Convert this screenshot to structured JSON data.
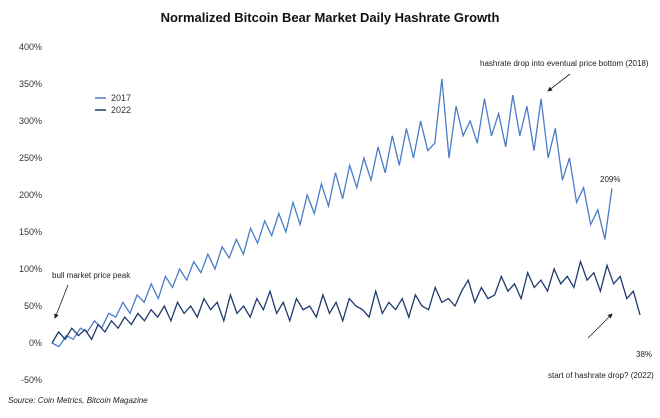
{
  "chart_data": {
    "type": "line",
    "title": "Normalized  Bitcoin Bear Market Daily Hashrate Growth",
    "xlabel": "",
    "ylabel": "",
    "ylim": [
      -50,
      400
    ],
    "yticks": [
      "400%",
      "350%",
      "300%",
      "250%",
      "200%",
      "150%",
      "100%",
      "50%",
      "0%",
      "-50%"
    ],
    "ytick_values": [
      400,
      350,
      300,
      250,
      200,
      150,
      100,
      50,
      0,
      -50
    ],
    "grid": false,
    "legend_position": "upper-left",
    "series": [
      {
        "name": "2017",
        "color": "#4a7cc7",
        "values": [
          0,
          -5,
          10,
          5,
          20,
          15,
          30,
          20,
          40,
          35,
          55,
          40,
          65,
          55,
          80,
          60,
          90,
          75,
          100,
          85,
          110,
          95,
          120,
          100,
          130,
          115,
          140,
          120,
          155,
          135,
          165,
          145,
          175,
          150,
          190,
          160,
          200,
          175,
          215,
          185,
          230,
          195,
          240,
          210,
          250,
          220,
          265,
          230,
          280,
          240,
          290,
          250,
          300,
          260,
          270,
          357,
          250,
          320,
          280,
          300,
          270,
          330,
          280,
          310,
          265,
          335,
          280,
          320,
          260,
          330,
          250,
          290,
          220,
          250,
          190,
          210,
          160,
          180,
          140,
          209
        ]
      },
      {
        "name": "2022",
        "color": "#1f3a6e",
        "values": [
          0,
          15,
          5,
          20,
          10,
          18,
          5,
          25,
          15,
          30,
          20,
          35,
          25,
          40,
          30,
          45,
          35,
          50,
          30,
          55,
          40,
          50,
          35,
          60,
          45,
          55,
          30,
          65,
          40,
          50,
          35,
          60,
          45,
          70,
          40,
          55,
          30,
          60,
          45,
          50,
          35,
          65,
          40,
          55,
          30,
          60,
          50,
          45,
          35,
          70,
          40,
          55,
          45,
          60,
          35,
          65,
          50,
          45,
          75,
          55,
          60,
          50,
          70,
          85,
          55,
          75,
          60,
          65,
          90,
          70,
          80,
          60,
          95,
          75,
          85,
          70,
          100,
          80,
          90,
          75,
          110,
          85,
          95,
          70,
          105,
          80,
          90,
          60,
          70,
          38
        ]
      }
    ],
    "annotations": {
      "bull_peak": "bull market price peak",
      "drop_2018": "hashrate drop into eventual price bottom (2018)",
      "drop_2022": "start of hashrate drop? (2022)",
      "end_2017": "209%",
      "end_2022": "38%"
    }
  },
  "source": "Source: Coin Metrics, Bitcoin Magazine"
}
